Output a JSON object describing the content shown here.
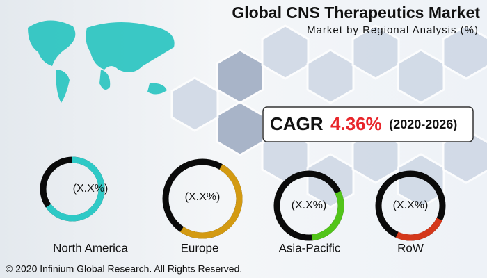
{
  "header": {
    "title": "Global CNS Therapeutics Market",
    "subtitle": "Market by Regional Analysis (%)"
  },
  "cagr": {
    "label": "CAGR",
    "value": "4.36%",
    "period": "(2020-2026)"
  },
  "regions": [
    {
      "name": "North America",
      "share": "(X.X%)"
    },
    {
      "name": "Europe",
      "share": "(X.X%)"
    },
    {
      "name": "Asia-Pacific",
      "share": "(X.X%)"
    },
    {
      "name": "RoW",
      "share": "(X.X%)"
    }
  ],
  "footer": {
    "copyright": "© 2020 Infinium Global Research. All Rights Reserved."
  }
}
